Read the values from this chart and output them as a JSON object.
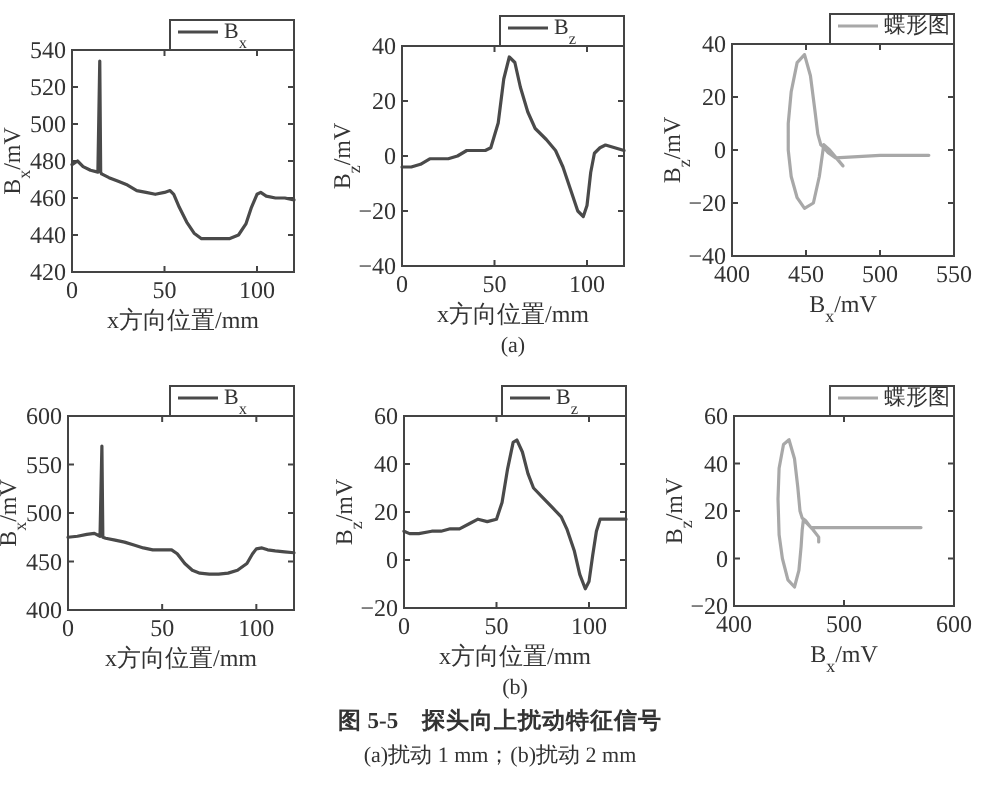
{
  "chart_data": [
    {
      "type": "line",
      "xlabel": "x方向位置/mm",
      "ylabel": "B$_{x}$/mV",
      "xlim": [
        0,
        120
      ],
      "ylim": [
        420,
        540
      ],
      "xticks": [
        0,
        50,
        100
      ],
      "yticks": [
        420,
        440,
        460,
        480,
        500,
        520,
        540
      ],
      "legend": "top right",
      "series": [
        {
          "name": "B$_{x}$",
          "color": "#4a4a4a",
          "x": [
            0,
            3,
            6,
            10,
            14,
            15,
            15.5,
            16,
            20,
            25,
            30,
            35,
            40,
            45,
            50,
            53,
            55,
            58,
            62,
            66,
            70,
            75,
            80,
            85,
            90,
            94,
            97,
            100,
            102,
            105,
            110,
            115,
            120
          ],
          "values": [
            478,
            480,
            477,
            475,
            474,
            534,
            474,
            473,
            471,
            469,
            467,
            464,
            463,
            462,
            463,
            464,
            462,
            455,
            447,
            441,
            438,
            438,
            438,
            438,
            440,
            446,
            455,
            462,
            463,
            461,
            460,
            460,
            459
          ]
        }
      ]
    },
    {
      "type": "line",
      "xlabel": "x方向位置/mm",
      "ylabel": "B$_{z}$/mV",
      "xlim": [
        0,
        120
      ],
      "ylim": [
        -40,
        40
      ],
      "xticks": [
        0,
        50,
        100
      ],
      "yticks": [
        -40,
        -20,
        0,
        20,
        40
      ],
      "legend": "top right",
      "annotations": [
        "(a)"
      ],
      "series": [
        {
          "name": "B$_{z}$",
          "color": "#4a4a4a",
          "x": [
            0,
            5,
            10,
            15,
            20,
            25,
            30,
            35,
            40,
            45,
            48,
            52,
            55,
            58,
            61,
            64,
            68,
            72,
            78,
            83,
            87,
            91,
            95,
            98,
            100,
            102,
            104,
            107,
            110,
            115,
            120
          ],
          "values": [
            -4,
            -4,
            -3,
            -1,
            -1,
            -1,
            0,
            2,
            2,
            2,
            3,
            12,
            28,
            36,
            34,
            25,
            16,
            10,
            6,
            2,
            -4,
            -12,
            -20,
            -22,
            -18,
            -6,
            1,
            3,
            4,
            3,
            2
          ]
        }
      ]
    },
    {
      "type": "line",
      "xlabel": "B$_{x}$/mV",
      "ylabel": "B$_{z}$/mV",
      "xlim": [
        400,
        550
      ],
      "ylim": [
        -40,
        40
      ],
      "xticks": [
        400,
        450,
        500,
        550
      ],
      "yticks": [
        -40,
        -20,
        0,
        20,
        40
      ],
      "legend": "top right",
      "series": [
        {
          "name": "蝶形图",
          "color": "#a8a8a8",
          "x": [
            533,
            500,
            470,
            465,
            462,
            460,
            458,
            456,
            453,
            449,
            444,
            440,
            438,
            438,
            440,
            444,
            449,
            455,
            459,
            461,
            462,
            466,
            472,
            475
          ],
          "values": [
            -2,
            -2,
            -3,
            -1,
            1,
            2,
            6,
            15,
            28,
            36,
            33,
            22,
            10,
            0,
            -10,
            -18,
            -22,
            -20,
            -10,
            -2,
            2,
            0,
            -4,
            -6
          ]
        }
      ]
    },
    {
      "type": "line",
      "xlabel": "x方向位置/mm",
      "ylabel": "B$_{x}$/mV",
      "xlim": [
        0,
        120
      ],
      "ylim": [
        400,
        600
      ],
      "xticks": [
        0,
        50,
        100
      ],
      "yticks": [
        400,
        450,
        500,
        550,
        600
      ],
      "legend": "top right",
      "series": [
        {
          "name": "B$_{x}$",
          "color": "#4a4a4a",
          "x": [
            0,
            5,
            10,
            14,
            17,
            18,
            18.5,
            20,
            25,
            30,
            35,
            40,
            45,
            50,
            55,
            58,
            62,
            66,
            70,
            75,
            80,
            85,
            90,
            95,
            98,
            100,
            103,
            106,
            110,
            115,
            120
          ],
          "values": [
            475,
            476,
            478,
            479,
            476,
            569,
            475,
            474,
            472,
            470,
            467,
            464,
            462,
            462,
            462,
            458,
            448,
            441,
            438,
            437,
            437,
            438,
            441,
            448,
            458,
            463,
            464,
            462,
            461,
            460,
            459
          ]
        }
      ]
    },
    {
      "type": "line",
      "xlabel": "x方向位置/mm",
      "ylabel": "B$_{z}$/mV",
      "xlim": [
        0,
        120
      ],
      "ylim": [
        -20,
        60
      ],
      "xticks": [
        0,
        50,
        100
      ],
      "yticks": [
        -20,
        0,
        20,
        40,
        60
      ],
      "legend": "top right",
      "annotations": [
        "(b)",
        "图 5-5　探头向上扰动特征信号",
        "(a)扰动 1 mm；(b)扰动 2 mm"
      ],
      "series": [
        {
          "name": "B$_{z}$",
          "color": "#4a4a4a",
          "x": [
            0,
            3,
            8,
            15,
            20,
            25,
            30,
            35,
            40,
            45,
            50,
            53,
            56,
            59,
            61,
            64,
            67,
            70,
            75,
            80,
            85,
            88,
            92,
            95,
            98,
            100,
            102,
            104,
            106,
            110,
            115,
            120
          ],
          "values": [
            12,
            11,
            11,
            12,
            12,
            13,
            13,
            15,
            17,
            16,
            17,
            24,
            38,
            49,
            50,
            45,
            36,
            30,
            26,
            22,
            18,
            13,
            4,
            -6,
            -12,
            -9,
            2,
            12,
            17,
            17,
            17,
            17
          ]
        }
      ]
    },
    {
      "type": "line",
      "xlabel": "B$_{x}$/mV",
      "ylabel": "B$_{z}$/mV",
      "xlim": [
        400,
        600
      ],
      "ylim": [
        -20,
        60
      ],
      "xticks": [
        400,
        500,
        600
      ],
      "yticks": [
        -20,
        0,
        20,
        40,
        60
      ],
      "legend": "top right",
      "series": [
        {
          "name": "蝶形图",
          "color": "#a8a8a8",
          "x": [
            570,
            520,
            480,
            470,
            465,
            462,
            460,
            458,
            455,
            450,
            445,
            441,
            440,
            441,
            444,
            449,
            455,
            459,
            461,
            462,
            463,
            466,
            472,
            477,
            477
          ],
          "values": [
            13,
            13,
            13,
            13,
            16,
            17,
            20,
            30,
            42,
            50,
            48,
            38,
            25,
            10,
            0,
            -9,
            -12,
            -5,
            5,
            12,
            16,
            15,
            12,
            9,
            7
          ]
        }
      ]
    }
  ]
}
